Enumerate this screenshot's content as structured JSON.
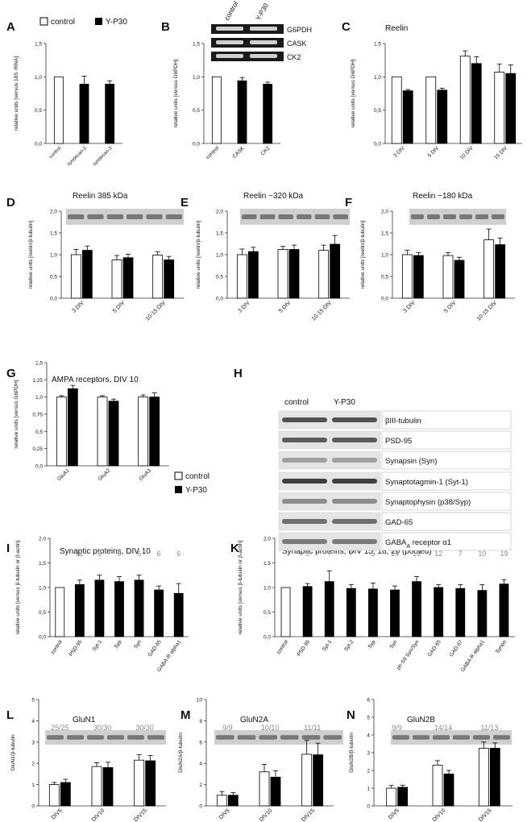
{
  "legend_top": {
    "control": "control",
    "treated": "Y-P30"
  },
  "legend_g": {
    "control": "control",
    "treated": "Y-P30"
  },
  "colors": {
    "control": "#ffffff",
    "treated": "#000000",
    "axis": "#333333",
    "count": "#8a8a8a",
    "blot_bg": "#bdbdbd",
    "band": "#5a5a5a"
  },
  "panels": {
    "A": {
      "letter": "A"
    },
    "B": {
      "letter": "B",
      "blot_labels": [
        "G6PDH",
        "CASK",
        "CK2"
      ],
      "blot_lanes": [
        "control",
        "Y-P30"
      ]
    },
    "C": {
      "letter": "C",
      "title": "Reelin"
    },
    "D": {
      "letter": "D",
      "title": "Reelin 385 kDa"
    },
    "E": {
      "letter": "E",
      "title": "Reelin ~320 kDa"
    },
    "F": {
      "letter": "F",
      "title": "Reelin ~180 kDa"
    },
    "G": {
      "letter": "G",
      "title": "AMPA receptors, DIV 10"
    },
    "H": {
      "letter": "H",
      "lanes": [
        "control",
        "Y-P30"
      ],
      "proteins": [
        "βIII-tubulin",
        "PSD-95",
        "Synapsin (Syn)",
        "Synaptotagmin-1 (Syt-1)",
        "Synaptophysin (p38/Syp)",
        "GAD-65",
        "GABAA receptor α1"
      ]
    },
    "I": {
      "letter": "I",
      "title": "Synaptic proteins, DIV 10"
    },
    "K": {
      "letter": "K",
      "title": "Synaptic proteins, DIV 15, 18, 20 (pooled)"
    },
    "L": {
      "letter": "L",
      "title": "GluN1"
    },
    "M": {
      "letter": "M",
      "title": "GluN2A"
    },
    "N": {
      "letter": "N",
      "title": "GluN2B"
    }
  },
  "chart_data": [
    {
      "id": "A",
      "type": "bar",
      "ylabel": "relative units [versus 18S rRNA]",
      "ylim": [
        0,
        1.5
      ],
      "yticks": [
        "0,0",
        "0,5",
        "1,0",
        "1,5"
      ],
      "categories": [
        "control",
        "syndecan-2",
        "syndecan-3"
      ],
      "bars": [
        {
          "v": 1.0,
          "e": 0,
          "k": "white"
        },
        {
          "v": 0.89,
          "e": 0.12,
          "k": "black"
        },
        {
          "v": 0.89,
          "e": 0.05,
          "k": "black"
        }
      ]
    },
    {
      "id": "B",
      "type": "bar",
      "ylabel": "relative units [versus G6PDH]",
      "ylim": [
        0,
        1.5
      ],
      "yticks": [
        "0,0",
        "0,5",
        "1,0",
        "1,5"
      ],
      "categories": [
        "control",
        "CASK",
        "CK2"
      ],
      "bars": [
        {
          "v": 1.0,
          "e": 0,
          "k": "white"
        },
        {
          "v": 0.94,
          "e": 0.05,
          "k": "black"
        },
        {
          "v": 0.89,
          "e": 0.03,
          "k": "black"
        }
      ]
    },
    {
      "id": "C",
      "type": "bar",
      "ylabel": "relative units [versus G6PDH]",
      "ylim": [
        0,
        1.5
      ],
      "yticks": [
        "0,0",
        "0,5",
        "1,0",
        "1,5"
      ],
      "categories": [
        "3 DIV",
        "5 DIV",
        "10 DIV",
        "15 DIV"
      ],
      "pairs": [
        [
          1.0,
          0,
          0.79,
          0.02
        ],
        [
          1.0,
          0,
          0.8,
          0.03
        ],
        [
          1.31,
          0.08,
          1.2,
          0.1
        ],
        [
          1.07,
          0.12,
          1.05,
          0.13
        ]
      ]
    },
    {
      "id": "D",
      "type": "bar",
      "ylabel": "relative units [reelin/β-tubulin]",
      "ylim": [
        0,
        2.0
      ],
      "yticks": [
        "0,0",
        "0,5",
        "1,0",
        "1,5",
        "2,0"
      ],
      "categories": [
        "3 DIV",
        "5 DIV",
        "10-15 DIV"
      ],
      "pairs": [
        [
          1.0,
          0.12,
          1.1,
          0.1
        ],
        [
          0.88,
          0.1,
          0.93,
          0.08
        ],
        [
          0.99,
          0.08,
          0.88,
          0.08
        ]
      ]
    },
    {
      "id": "E",
      "type": "bar",
      "ylabel": "relative units [reelin/β-tubulin]",
      "ylim": [
        0,
        2.0
      ],
      "yticks": [
        "0,0",
        "0,5",
        "1,0",
        "1,5",
        "2,0"
      ],
      "categories": [
        "3 DIV",
        "5 DIV",
        "10-15 DIV"
      ],
      "pairs": [
        [
          1.0,
          0.13,
          1.07,
          0.1
        ],
        [
          1.12,
          0.07,
          1.12,
          0.1
        ],
        [
          1.1,
          0.12,
          1.24,
          0.2
        ]
      ]
    },
    {
      "id": "F",
      "type": "bar",
      "ylabel": "relative units [reelin/β-tubulin]",
      "ylim": [
        0,
        2.0
      ],
      "yticks": [
        "0,0",
        "0,5",
        "1,0",
        "1,5",
        "2,0"
      ],
      "categories": [
        "3 DIV",
        "5 DIV",
        "10-15 DIV"
      ],
      "pairs": [
        [
          1.0,
          0.1,
          0.98,
          0.07
        ],
        [
          0.98,
          0.07,
          0.87,
          0.07
        ],
        [
          1.34,
          0.25,
          1.23,
          0.15
        ]
      ]
    },
    {
      "id": "G",
      "type": "bar",
      "ylabel": "relative units [versus G6PDH]",
      "ylim": [
        0,
        1.5
      ],
      "yticks": [
        "0,0",
        "0,25",
        "0,5",
        "0,75",
        "1,0",
        "1,25",
        "1,5"
      ],
      "categories": [
        "GluA1",
        "GluA2",
        "GluA3"
      ],
      "pairs": [
        [
          1.0,
          0.02,
          1.12,
          0.05
        ],
        [
          1.0,
          0.02,
          0.94,
          0.03
        ],
        [
          1.0,
          0.03,
          1.0,
          0.06
        ]
      ]
    },
    {
      "id": "I",
      "type": "bar",
      "ylabel": "relative units [versus β-tubulin or β-actin]",
      "ylim": [
        0,
        2.0
      ],
      "yticks": [
        "0,0",
        "0,5",
        "1,0",
        "1,5",
        "2,0"
      ],
      "categories": [
        "control",
        "PSD-95",
        "Syt-1",
        "Syp",
        "Syn",
        "GAD-65",
        "GABA-R alpha1"
      ],
      "counts": [
        "",
        "11",
        "6",
        "6",
        "6",
        "6",
        "6"
      ],
      "bars": [
        {
          "v": 1.0,
          "e": 0,
          "k": "white"
        },
        {
          "v": 1.06,
          "e": 0.09,
          "k": "black"
        },
        {
          "v": 1.15,
          "e": 0.1,
          "k": "black"
        },
        {
          "v": 1.12,
          "e": 0.1,
          "k": "black"
        },
        {
          "v": 1.15,
          "e": 0.1,
          "k": "black"
        },
        {
          "v": 0.95,
          "e": 0.08,
          "k": "black"
        },
        {
          "v": 0.88,
          "e": 0.2,
          "k": "black"
        }
      ]
    },
    {
      "id": "K",
      "type": "bar",
      "ylabel": "relative units [versus β-tubulin or β-actin]",
      "ylim": [
        0,
        2.0
      ],
      "yticks": [
        "0,0",
        "0,5",
        "1,0",
        "1,5",
        "2,0"
      ],
      "categories": [
        "control",
        "PSD-95",
        "Syt-1",
        "Syt-2",
        "Syp",
        "Syn",
        "ph-S9 Syn/Syn",
        "GAD-65",
        "GAD-67",
        "GABA-R alpha1",
        "Synpo"
      ],
      "counts": [
        "",
        "5",
        "7",
        "7",
        "5",
        "14",
        "19",
        "12",
        "7",
        "10",
        "19"
      ],
      "bars": [
        {
          "v": 1.0,
          "e": 0,
          "k": "white"
        },
        {
          "v": 1.02,
          "e": 0.06,
          "k": "black"
        },
        {
          "v": 1.12,
          "e": 0.22,
          "k": "black"
        },
        {
          "v": 0.98,
          "e": 0.08,
          "k": "black"
        },
        {
          "v": 0.97,
          "e": 0.12,
          "k": "black"
        },
        {
          "v": 0.95,
          "e": 0.08,
          "k": "black"
        },
        {
          "v": 1.12,
          "e": 0.1,
          "k": "black"
        },
        {
          "v": 1.0,
          "e": 0.06,
          "k": "black"
        },
        {
          "v": 0.98,
          "e": 0.08,
          "k": "black"
        },
        {
          "v": 0.94,
          "e": 0.12,
          "k": "black"
        },
        {
          "v": 1.07,
          "e": 0.09,
          "k": "black"
        }
      ]
    },
    {
      "id": "L",
      "type": "bar",
      "ylabel": "GluN1/β-tubulin",
      "ylim": [
        0,
        5
      ],
      "yticks": [
        "0",
        "1",
        "2",
        "3",
        "4",
        "5"
      ],
      "categories": [
        "DIV5",
        "DIV10",
        "DIV15"
      ],
      "counts": [
        "25/25",
        "30/30",
        "30/30"
      ],
      "pairs": [
        [
          1.0,
          0.1,
          1.1,
          0.15
        ],
        [
          1.85,
          0.18,
          1.8,
          0.25
        ],
        [
          2.15,
          0.25,
          2.12,
          0.25
        ]
      ]
    },
    {
      "id": "M",
      "type": "bar",
      "ylabel": "GluN2A/β-tubulin",
      "ylim": [
        0,
        10
      ],
      "yticks": [
        "0",
        "2",
        "4",
        "6",
        "8",
        "10"
      ],
      "categories": [
        "DIV5",
        "DIV10",
        "DIV15"
      ],
      "counts": [
        "9/9",
        "10/10",
        "11/11"
      ],
      "pairs": [
        [
          1.0,
          0.35,
          1.0,
          0.25
        ],
        [
          3.2,
          0.7,
          2.7,
          0.6
        ],
        [
          4.85,
          1.3,
          4.8,
          1.1
        ]
      ]
    },
    {
      "id": "N",
      "type": "bar",
      "ylabel": "GluN2B/β-tubulin",
      "ylim": [
        0,
        6
      ],
      "yticks": [
        "0",
        "1",
        "2",
        "3",
        "4",
        "5",
        "6"
      ],
      "categories": [
        "DIV5",
        "DIV10",
        "DIV15"
      ],
      "counts": [
        "9/9",
        "14/14",
        "11/13"
      ],
      "pairs": [
        [
          1.0,
          0.15,
          1.05,
          0.12
        ],
        [
          2.3,
          0.25,
          1.8,
          0.2
        ],
        [
          3.25,
          0.35,
          3.25,
          0.3
        ]
      ]
    }
  ]
}
